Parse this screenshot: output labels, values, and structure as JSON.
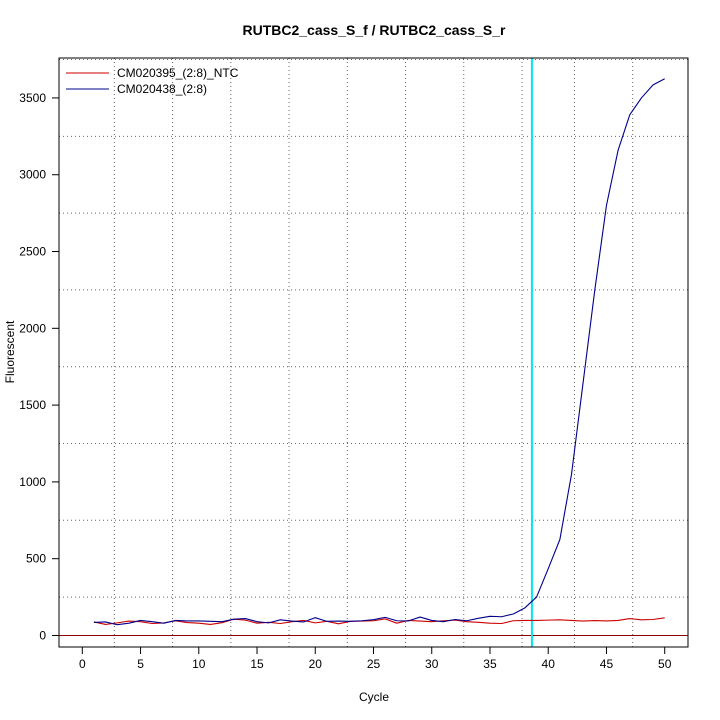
{
  "chart_data": {
    "type": "line",
    "title": "RUTBC2_cass_S_f / RUTBC2_cass_S_r",
    "xlabel": "Cycle",
    "ylabel": "Fluorescent",
    "xlim": [
      -2,
      52
    ],
    "ylim": [
      -75,
      3760
    ],
    "x_ticks": [
      0,
      5,
      10,
      15,
      20,
      25,
      30,
      35,
      40,
      45,
      50
    ],
    "y_ticks": [
      0,
      500,
      1000,
      1500,
      2000,
      2500,
      3000,
      3500
    ],
    "grid": true,
    "grid_x": [
      2.75,
      7.75,
      12.75,
      17.75,
      22.75,
      27.75,
      32.75,
      37.75,
      42.25,
      47.25
    ],
    "grid_y": [
      250,
      750,
      1250,
      1750,
      2250,
      2750,
      3250,
      3750
    ],
    "legend_position": "top-left",
    "threshold_cycle": 38.6,
    "baseline_y": 0,
    "colors": {
      "ntc": "#cc0000",
      "sample": "#00008b",
      "threshold": "#00e5ee",
      "baseline": "#8b0000",
      "grid": "#666666"
    },
    "x": [
      1,
      2,
      3,
      4,
      5,
      6,
      7,
      8,
      9,
      10,
      11,
      12,
      13,
      14,
      15,
      16,
      17,
      18,
      19,
      20,
      21,
      22,
      23,
      24,
      25,
      26,
      27,
      28,
      29,
      30,
      31,
      32,
      33,
      34,
      35,
      36,
      37,
      38,
      39,
      40,
      41,
      42,
      43,
      44,
      45,
      46,
      47,
      48,
      49,
      50
    ],
    "series": [
      {
        "name": "CM020395_(2:8)_NTC",
        "values": [
          88,
          72,
          82,
          94,
          90,
          78,
          82,
          95,
          84,
          80,
          72,
          83,
          106,
          100,
          80,
          86,
          78,
          90,
          98,
          82,
          92,
          76,
          92,
          94,
          96,
          108,
          80,
          98,
          94,
          90,
          96,
          100,
          90,
          86,
          80,
          78,
          96,
          98,
          98,
          100,
          102,
          98,
          94,
          97,
          95,
          98,
          110,
          102,
          104,
          115
        ]
      },
      {
        "name": "CM020438_(2:8)",
        "values": [
          85,
          88,
          70,
          80,
          98,
          90,
          80,
          98,
          95,
          95,
          92,
          90,
          106,
          110,
          90,
          82,
          102,
          94,
          88,
          116,
          92,
          94,
          92,
          96,
          103,
          118,
          96,
          95,
          120,
          98,
          90,
          104,
          96,
          112,
          125,
          122,
          140,
          180,
          250,
          435,
          625,
          1050,
          1650,
          2250,
          2800,
          3160,
          3390,
          3500,
          3585,
          3625
        ]
      }
    ]
  }
}
